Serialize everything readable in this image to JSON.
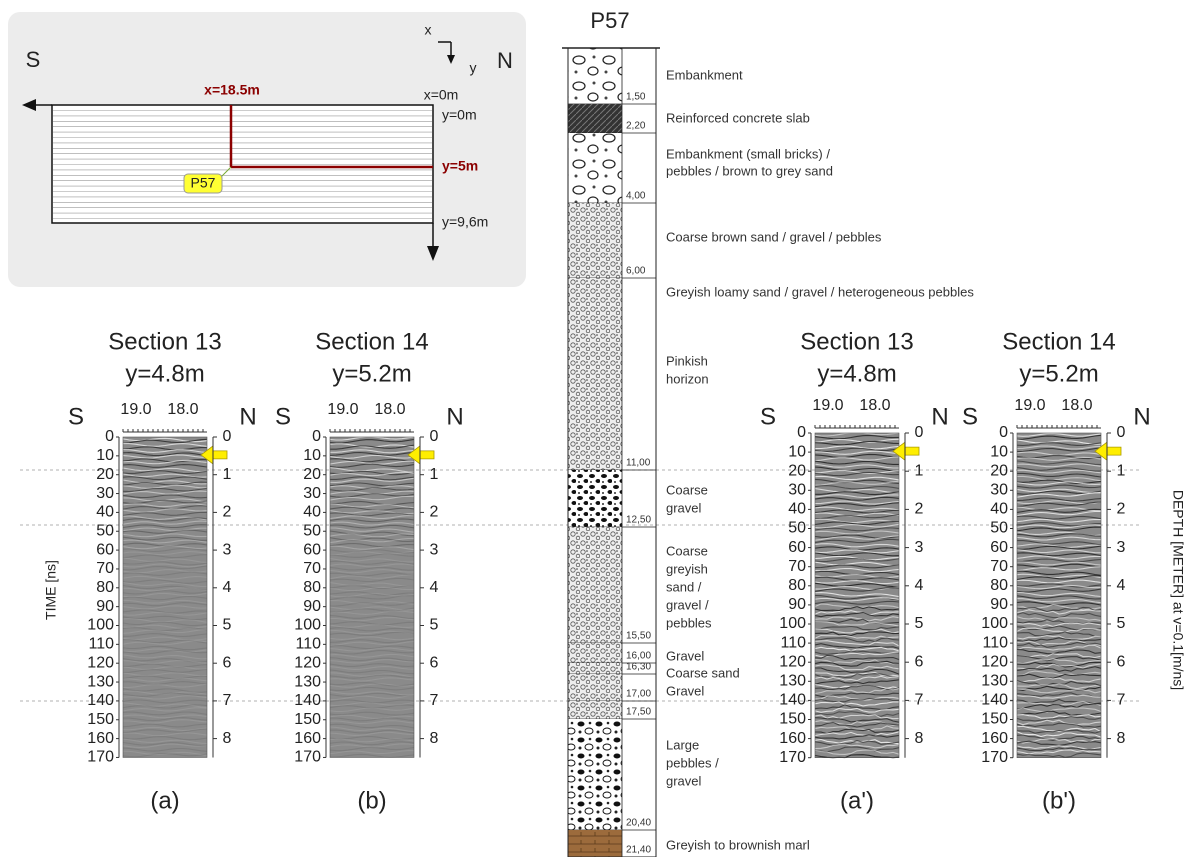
{
  "map": {
    "south": "S",
    "north": "N",
    "axis_x": "x",
    "axis_y": "y",
    "x_marker": "x=18.5m",
    "x_origin": "x=0m",
    "y_origin": "y=0m",
    "y_marker": "y=5m",
    "y_end": "y=9,6m",
    "borehole_label": "P57"
  },
  "borehole": {
    "title": "P57",
    "depth_labels": [
      "1,50",
      "2,20",
      "4,00",
      "6,00",
      "11,00",
      "12,50",
      "15,50",
      "16,00",
      "16,30",
      "17,00",
      "17,50",
      "20,40",
      "21,40"
    ],
    "descriptions": [
      [
        "Embankment"
      ],
      [
        "Reinforced concrete slab"
      ],
      [
        "Embankment (small bricks) /",
        "pebbles / brown to grey sand"
      ],
      [
        "Coarse brown sand / gravel / pebbles"
      ],
      [
        "Greyish loamy sand / gravel / heterogeneous pebbles"
      ],
      [
        "Pinkish",
        "horizon"
      ],
      [
        "Coarse",
        "gravel"
      ],
      [
        "Coarse",
        "greyish",
        "sand /",
        "gravel /",
        "pebbles"
      ],
      [
        "Gravel"
      ],
      [
        "Coarse sand"
      ],
      [
        "Gravel"
      ],
      [
        "Large",
        "pebbles /",
        "gravel"
      ],
      [
        "Greyish to brownish marl"
      ]
    ]
  },
  "radargrams": {
    "time_axis_label": "TIME [ns]",
    "depth_axis_label": "DEPTH [METER] at v=0.1[m/ns]",
    "time_ticks": [
      0,
      10,
      20,
      30,
      40,
      50,
      60,
      70,
      80,
      90,
      100,
      110,
      120,
      130,
      140,
      150,
      160,
      170
    ],
    "depth_ticks": [
      0,
      1,
      2,
      3,
      4,
      5,
      6,
      7,
      8
    ],
    "distance_ticks": [
      "19.0",
      "18.0"
    ],
    "south": "S",
    "north": "N",
    "panels": [
      {
        "section": "Section 13",
        "position": "y=4.8m",
        "caption": "(a)"
      },
      {
        "section": "Section 14",
        "position": "y=5.2m",
        "caption": "(b)"
      },
      {
        "section": "Section 13",
        "position": "y=4.8m",
        "caption": "(a')"
      },
      {
        "section": "Section 14",
        "position": "y=5.2m",
        "caption": "(b')"
      }
    ]
  }
}
